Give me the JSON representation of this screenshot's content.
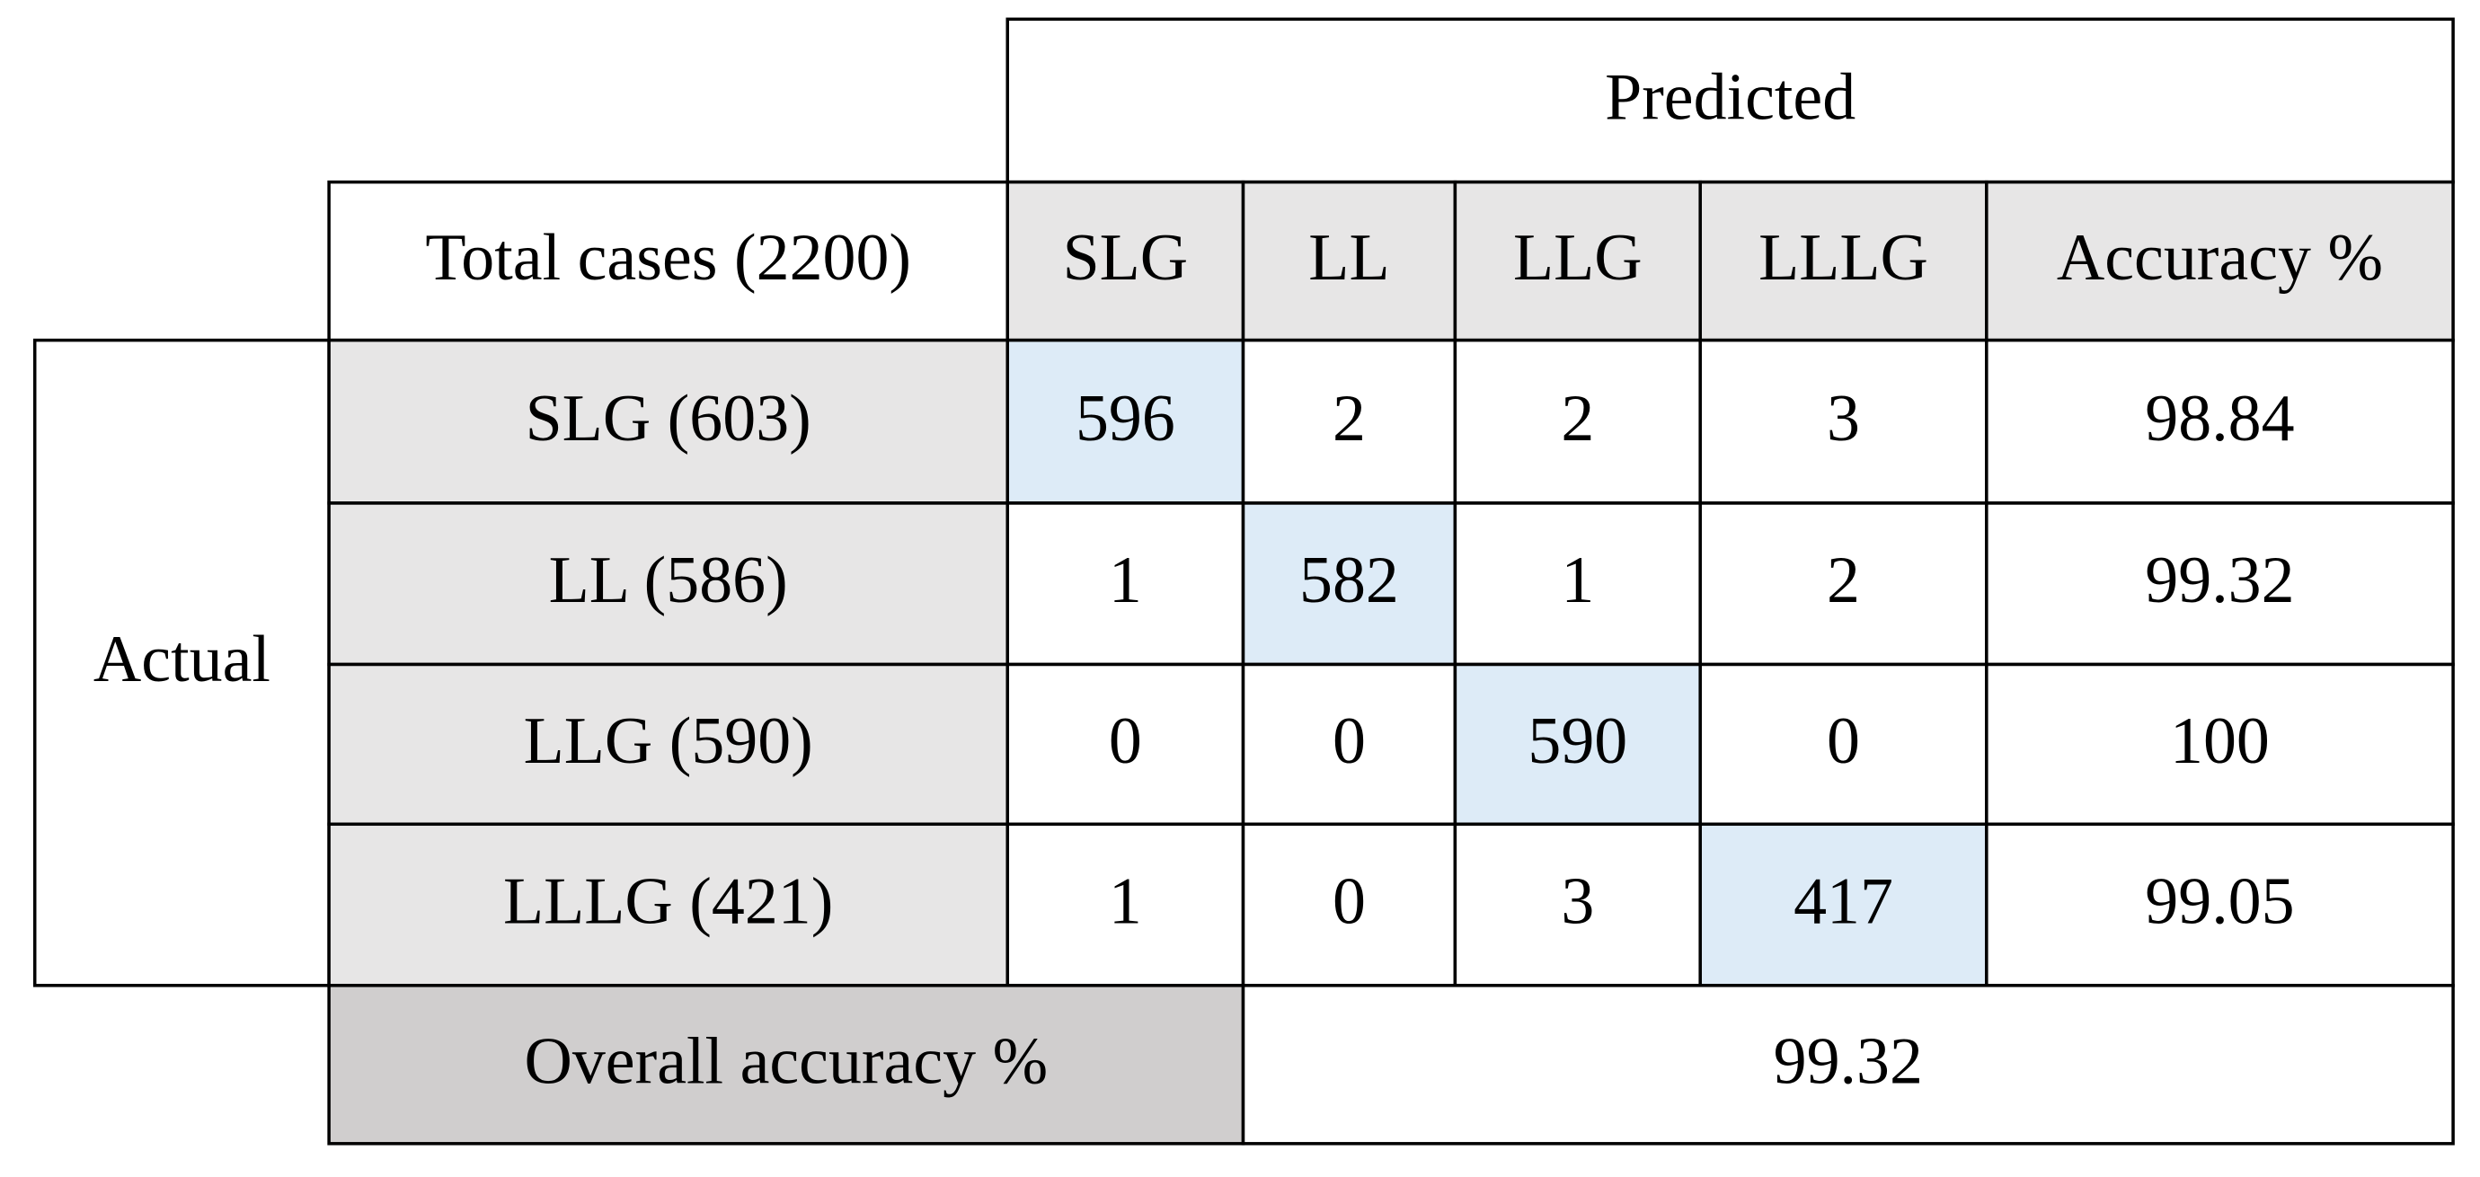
{
  "header": {
    "title": "Predicted"
  },
  "actual_label": "Actual",
  "table": {
    "corner": "Total cases (2200)",
    "columns": [
      "SLG",
      "LL",
      "LLG",
      "LLLG",
      "Accuracy %"
    ],
    "rows": [
      {
        "label": "SLG (603)",
        "cells": [
          596,
          2,
          2,
          3,
          98.84
        ]
      },
      {
        "label": "LL (586)",
        "cells": [
          1,
          582,
          1,
          2,
          99.32
        ]
      },
      {
        "label": "LLG (590)",
        "cells": [
          0,
          0,
          590,
          0,
          100
        ]
      },
      {
        "label": "LLLG (421)",
        "cells": [
          1,
          0,
          3,
          417,
          99.05
        ]
      }
    ]
  },
  "overall": {
    "label": "Overall accuracy %",
    "value": 99.32
  }
}
